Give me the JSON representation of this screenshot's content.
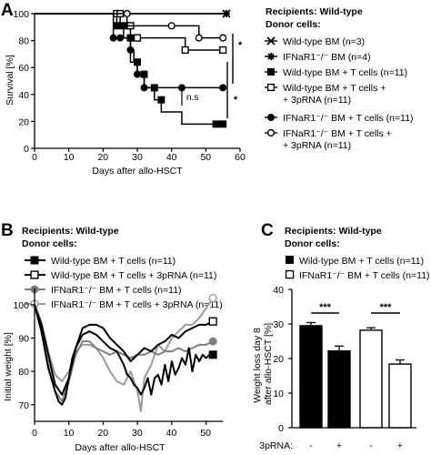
{
  "panels": [
    {
      "label": "A"
    },
    {
      "label": "B"
    },
    {
      "label": "C"
    }
  ],
  "chart_data": [
    {
      "panel": "A",
      "type": "line",
      "step": true,
      "xlabel": "Days after allo-HSCT",
      "ylabel": "Survival [%]",
      "xlim": [
        0,
        60
      ],
      "ylim": [
        0,
        100
      ],
      "xticks": [
        "0",
        "10",
        "20",
        "30",
        "40",
        "50",
        "60"
      ],
      "yticks": [
        "0",
        "20",
        "40",
        "60",
        "80",
        "100"
      ],
      "legend": {
        "header": [
          "Recipients: Wild-type",
          "Donor cells:"
        ],
        "placement": "right"
      },
      "series": [
        {
          "name": "Wild-type BM (n=3)",
          "marker": "x",
          "color": "#000000",
          "x": [
            0,
            56
          ],
          "y": [
            100,
            100
          ],
          "censor": [
            [
              56,
              100
            ]
          ]
        },
        {
          "name": "IFNaR1⁻/⁻ BM (n=4)",
          "marker": "asterisk",
          "color": "#000000",
          "x": [
            0,
            56
          ],
          "y": [
            100,
            100
          ],
          "censor": [
            [
              56,
              100
            ]
          ]
        },
        {
          "name": "Wild-type BM + T cells (n=11)",
          "marker": "square-filled",
          "color": "#000000",
          "x": [
            0,
            24,
            26,
            28,
            29,
            30,
            32,
            35,
            37,
            43,
            46,
            53
          ],
          "y": [
            100,
            91,
            82,
            73,
            64,
            55,
            45,
            36,
            27,
            18,
            18,
            18
          ],
          "censor": [
            [
              24,
              91
            ],
            [
              26,
              91
            ],
            [
              28,
              82
            ],
            [
              30,
              64
            ],
            [
              32,
              55
            ],
            [
              35,
              45
            ],
            [
              37,
              36
            ],
            [
              53,
              18
            ],
            [
              55,
              18
            ]
          ]
        },
        {
          "name": "Wild-type BM + T cells + 3pRNA (n=11)",
          "marker": "square-open",
          "color": "#000000",
          "x": [
            0,
            25,
            28,
            30,
            44,
            56
          ],
          "y": [
            100,
            91,
            82,
            82,
            73,
            73
          ],
          "censor": [
            [
              24,
              100
            ],
            [
              25,
              100
            ],
            [
              28,
              91
            ],
            [
              30,
              82
            ],
            [
              44,
              73
            ],
            [
              55,
              73
            ]
          ]
        },
        {
          "name": "IFNaR1⁻/⁻ BM + T cells (n=11)",
          "marker": "circle-filled",
          "color": "#000000",
          "x": [
            0,
            23,
            28,
            30,
            32,
            55
          ],
          "y": [
            100,
            82,
            64,
            55,
            45,
            45
          ],
          "censor": [
            [
              23,
              82
            ],
            [
              25,
              82
            ],
            [
              28,
              73
            ],
            [
              30,
              55
            ],
            [
              32,
              45
            ],
            [
              43,
              45
            ],
            [
              55,
              45
            ]
          ]
        },
        {
          "name": "IFNaR1⁻/⁻ BM + T cells + 3pRNA (n=11)",
          "marker": "circle-open",
          "color": "#000000",
          "x": [
            0,
            27,
            40,
            48,
            56
          ],
          "y": [
            100,
            91,
            91,
            82,
            82
          ],
          "censor": [
            [
              27,
              100
            ],
            [
              40,
              91
            ],
            [
              48,
              82
            ],
            [
              55,
              82
            ]
          ]
        }
      ],
      "annotations": [
        {
          "text": "*",
          "kind": "significance"
        },
        {
          "text": "*",
          "kind": "significance"
        },
        {
          "text": "n.s",
          "kind": "not-significant"
        }
      ]
    },
    {
      "panel": "B",
      "type": "line",
      "xlabel": "Days after allo-HSCT",
      "ylabel": "Initial weight [%]",
      "xlim": [
        0,
        55
      ],
      "ylim": [
        65,
        105
      ],
      "xticks": [
        "0",
        "10",
        "20",
        "30",
        "40",
        "50"
      ],
      "yticks": [
        "70",
        "80",
        "90",
        "100"
      ],
      "legend": {
        "header": [
          "Recipients: Wild-type",
          "Donor cells:"
        ],
        "placement": "top"
      },
      "series": [
        {
          "name": "Wild-type BM + T cells (n=11)",
          "marker": "square-filled",
          "color": "#000000",
          "x": [
            0,
            2,
            4,
            6,
            7,
            8,
            9,
            10,
            11,
            12,
            14,
            16,
            18,
            20,
            22,
            24,
            25,
            26,
            27,
            28,
            29,
            30,
            31,
            32,
            33,
            34,
            35,
            36,
            37,
            38,
            39,
            40,
            41,
            42,
            43,
            44,
            45,
            46,
            47,
            48,
            49,
            50,
            51,
            52
          ],
          "y": [
            100,
            92,
            81,
            74,
            71,
            70,
            72,
            78,
            84,
            87,
            91,
            92,
            91,
            89,
            87,
            86,
            84,
            82,
            79,
            78,
            76,
            75,
            73,
            75,
            78,
            73,
            78,
            79,
            76,
            82,
            77,
            83,
            79,
            81,
            84,
            82,
            87,
            80,
            85,
            83,
            85,
            84,
            85,
            85
          ]
        },
        {
          "name": "Wild-type BM + T cells + 3pRNA (n=11)",
          "marker": "square-open",
          "color": "#000000",
          "x": [
            0,
            2,
            4,
            6,
            8,
            10,
            12,
            14,
            16,
            18,
            20,
            22,
            24,
            26,
            28,
            30,
            32,
            34,
            36,
            38,
            40,
            42,
            44,
            46,
            48,
            50,
            52
          ],
          "y": [
            100,
            94,
            85,
            76,
            73,
            78,
            87,
            93,
            94,
            94,
            93,
            90,
            88,
            86,
            83,
            85,
            87,
            86,
            88,
            89,
            91,
            90,
            92,
            93,
            94,
            94,
            95
          ]
        },
        {
          "name": "IFNaR1⁻/⁻ BM + T cells (n=11)",
          "marker": "circle-filled",
          "color": "#7f7f7f",
          "x": [
            0,
            2,
            4,
            6,
            8,
            10,
            12,
            14,
            16,
            18,
            20,
            22,
            24,
            26,
            28,
            30,
            32,
            34,
            36,
            38,
            40,
            42,
            44,
            46,
            48,
            50,
            52
          ],
          "y": [
            100,
            92,
            82,
            74,
            71,
            77,
            85,
            89,
            89,
            87,
            86,
            85,
            86,
            85,
            84,
            85,
            85,
            86,
            85,
            86,
            86,
            87,
            86,
            87,
            88,
            88,
            89
          ]
        },
        {
          "name": "IFNaR1⁻/⁻ BM + T cells + 3pRNA (n=11)",
          "marker": "circle-open",
          "color": "#9a9a9a",
          "x": [
            0,
            2,
            4,
            6,
            8,
            10,
            12,
            14,
            16,
            18,
            20,
            22,
            24,
            26,
            28,
            30,
            31,
            32,
            34,
            36,
            38,
            40,
            42,
            44,
            46,
            48,
            50,
            52
          ],
          "y": [
            100,
            95,
            86,
            79,
            77,
            80,
            86,
            88,
            88,
            87,
            84,
            80,
            77,
            76,
            80,
            74,
            68,
            78,
            82,
            88,
            86,
            90,
            92,
            94,
            94,
            96,
            99,
            102
          ]
        }
      ]
    },
    {
      "panel": "C",
      "type": "bar",
      "ylabel": "Weight loss day 8 after allo-HSCT [%]",
      "ylim": [
        0,
        40
      ],
      "yticks": [
        "0",
        "10",
        "20",
        "30",
        "40"
      ],
      "xaxis_label": "3pRNA:",
      "categories": [
        "-",
        "+",
        "-",
        "+"
      ],
      "values": [
        29.5,
        22.2,
        28.2,
        18.4
      ],
      "errors": [
        0.9,
        1.4,
        0.7,
        1.2
      ],
      "fills": [
        "#000000",
        "#000000",
        "#ffffff",
        "#ffffff"
      ],
      "legend": {
        "header": [
          "Recipients: Wild-type",
          "Donor cells:"
        ],
        "placement": "top",
        "entries": [
          {
            "name": "Wild-type BM + T cells (n=11)",
            "marker": "square-filled"
          },
          {
            "name": "IFNaR1⁻/⁻ BM + T cells (n=11)",
            "marker": "square-open"
          }
        ]
      },
      "annotations": [
        {
          "text": "***",
          "kind": "significance"
        },
        {
          "text": "***",
          "kind": "significance"
        }
      ]
    }
  ]
}
